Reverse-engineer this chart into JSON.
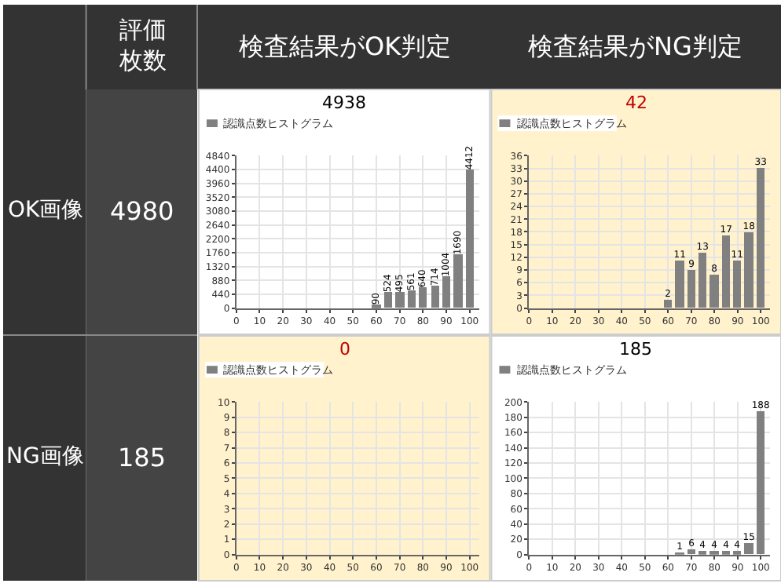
{
  "chart_data": [
    {
      "type": "other",
      "annotations": [
        "評価枚数",
        "検査結果がOK判定",
        "検査結果がNG判定",
        "OK画像",
        "4980",
        "NG画像",
        "185"
      ]
    },
    {
      "type": "bar",
      "title": "4938",
      "x": [
        60,
        65,
        70,
        75,
        80,
        85,
        90,
        95,
        100
      ],
      "series": [
        {
          "name": "認識点数ヒストグラム",
          "color": "#808080",
          "values": [
            90,
            524,
            495,
            561,
            640,
            714,
            1004,
            1690,
            4412
          ]
        }
      ],
      "data_labels": true,
      "xlim": [
        0,
        104
      ],
      "xticks": [
        0,
        10,
        20,
        30,
        40,
        50,
        60,
        70,
        80,
        90,
        100
      ],
      "ylim": [
        0,
        4840
      ],
      "yticks": [
        0,
        440,
        880,
        1320,
        1760,
        2200,
        2640,
        3080,
        3520,
        3960,
        4400,
        4840
      ],
      "grid": true,
      "legend": "top left"
    },
    {
      "type": "bar",
      "title": "42",
      "x": [
        60,
        65,
        70,
        75,
        80,
        85,
        90,
        95,
        100
      ],
      "series": [
        {
          "name": "認識点数ヒストグラム",
          "color": "#808080",
          "values": [
            2,
            11,
            9,
            13,
            8,
            17,
            11,
            18,
            33
          ]
        }
      ],
      "data_labels": true,
      "xlim": [
        0,
        104
      ],
      "xticks": [
        0,
        10,
        20,
        30,
        40,
        50,
        60,
        70,
        80,
        90,
        100
      ],
      "ylim": [
        0,
        36
      ],
      "yticks": [
        0,
        3,
        6,
        9,
        12,
        15,
        18,
        21,
        24,
        27,
        30,
        33,
        36
      ],
      "grid": true,
      "legend": "top left"
    },
    {
      "type": "bar",
      "title": "0",
      "x": [
        60,
        65,
        70,
        75,
        80,
        85,
        90,
        95,
        100
      ],
      "series": [
        {
          "name": "認識点数ヒストグラム",
          "color": "#808080",
          "values": [
            0,
            0,
            0,
            0,
            0,
            0,
            0,
            0,
            0
          ]
        }
      ],
      "xlim": [
        0,
        104
      ],
      "xticks": [
        0,
        10,
        20,
        30,
        40,
        50,
        60,
        70,
        80,
        90,
        100
      ],
      "ylim": [
        0,
        10
      ],
      "yticks": [
        0,
        1,
        2,
        3,
        4,
        5,
        6,
        7,
        8,
        9,
        10
      ],
      "grid": true,
      "legend": "top left"
    },
    {
      "type": "bar",
      "title": "185",
      "x": [
        65,
        70,
        75,
        80,
        85,
        90,
        95,
        100
      ],
      "series": [
        {
          "name": "認識点数ヒストグラム",
          "color": "#808080",
          "values": [
            1,
            6,
            4,
            4,
            4,
            4,
            15,
            188
          ]
        }
      ],
      "data_labels": true,
      "xlim": [
        0,
        104
      ],
      "xticks": [
        0,
        10,
        20,
        30,
        40,
        50,
        60,
        70,
        80,
        90,
        100
      ],
      "ylim": [
        0,
        200
      ],
      "yticks": [
        0,
        20,
        40,
        60,
        80,
        100,
        120,
        140,
        160,
        180,
        200
      ],
      "grid": true,
      "legend": "top left"
    }
  ]
}
